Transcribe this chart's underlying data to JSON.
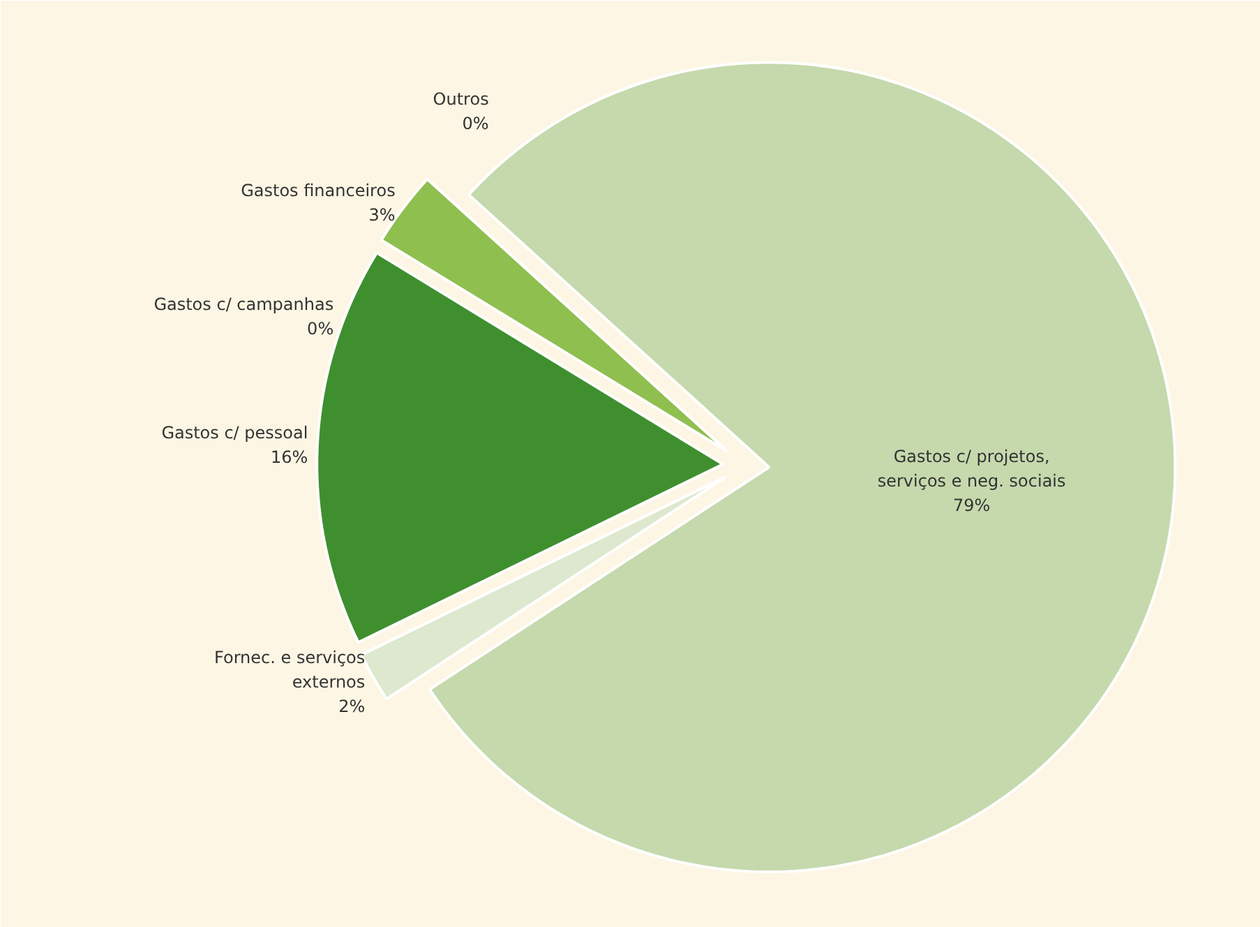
{
  "chart_data": {
    "type": "pie",
    "categories": [
      "Gastos c/ projetos,\nserviços e neg. sociais",
      "Fornec. e serviços\nexternos",
      "Gastos c/ pessoal",
      "Gastos c/ campanhas",
      "Gastos financeiros",
      "Outros"
    ],
    "values": [
      79,
      2,
      16,
      0,
      3,
      0
    ],
    "value_labels": [
      "79%",
      "2%",
      "16%",
      "0%",
      "3%",
      "0%"
    ],
    "colors": [
      "#c5d9ad",
      "#dde8cf",
      "#3f8f2f",
      "#8aa58a",
      "#8fbf4f",
      "#c5d9ad"
    ]
  }
}
